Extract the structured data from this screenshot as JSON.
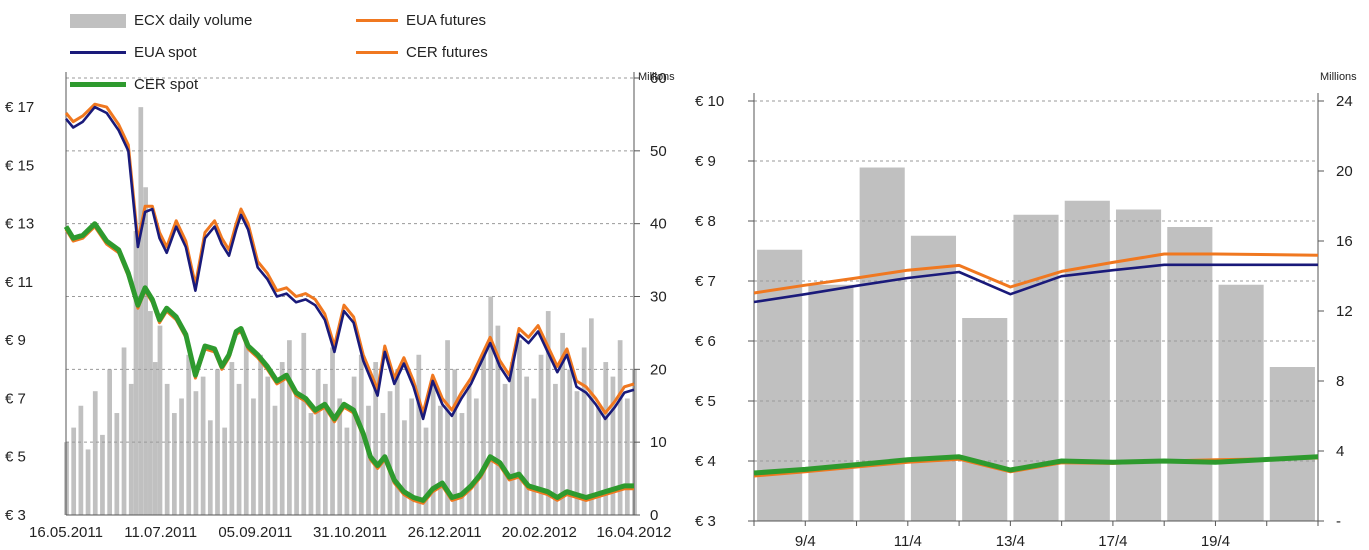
{
  "colors": {
    "volume": "#c0c0c0",
    "eua_spot": "#1a1a7a",
    "eua_futures": "#f07820",
    "cer_spot": "#2e9a2e",
    "cer_futures": "#f07820",
    "grid": "#9a9a9a"
  },
  "legend": {
    "volume_label": "ECX daily volume",
    "eua_futures_label": "EUA futures",
    "eua_spot_label": "EUA spot",
    "cer_futures_label": "CER futures",
    "cer_spot_label": "CER spot"
  },
  "chart_data": [
    {
      "type": "line",
      "title": "",
      "x_tick_labels": [
        "16.05.2011",
        "11.07.2011",
        "05.09.2011",
        "31.10.2011",
        "26.12.2011",
        "20.02.2012",
        "16.04.2012"
      ],
      "y_left_tick_labels": [
        "€ 3",
        "€ 5",
        "€ 7",
        "€ 9",
        "€ 11",
        "€ 13",
        "€ 15",
        "€ 17"
      ],
      "y_left_range": [
        3,
        18
      ],
      "y_right_label": "Millions",
      "y_right_tick_labels": [
        "0",
        "10",
        "20",
        "30",
        "40",
        "50",
        "60"
      ],
      "y_right_range": [
        0,
        60
      ],
      "x_range": [
        0,
        237
      ],
      "grid": true,
      "legend_placement": "top-left",
      "series": [
        {
          "name": "EUA spot",
          "axis": "left",
          "kind": "line",
          "x": [
            0,
            3,
            7,
            12,
            17,
            22,
            26,
            30,
            33,
            36,
            39,
            42,
            46,
            50,
            54,
            58,
            62,
            65,
            68,
            71,
            73,
            76,
            80,
            84,
            88,
            92,
            96,
            100,
            104,
            108,
            112,
            116,
            120,
            124,
            127,
            130,
            133,
            137,
            141,
            145,
            149,
            153,
            157,
            161,
            165,
            169,
            173,
            177,
            181,
            185,
            189,
            193,
            197,
            201,
            205,
            209,
            213,
            217,
            221,
            225,
            229,
            233,
            237
          ],
          "y": [
            16.6,
            16.3,
            16.5,
            17.0,
            16.8,
            16.2,
            15.5,
            12.2,
            13.4,
            13.5,
            12.5,
            12.0,
            12.9,
            12.2,
            10.7,
            12.5,
            12.9,
            12.3,
            11.9,
            12.8,
            13.3,
            12.8,
            11.5,
            11.1,
            10.5,
            10.6,
            10.3,
            10.4,
            10.2,
            9.7,
            8.6,
            10.0,
            9.6,
            8.3,
            7.7,
            7.1,
            8.6,
            7.5,
            8.2,
            7.4,
            6.3,
            7.6,
            6.8,
            6.4,
            7.0,
            7.5,
            8.2,
            8.9,
            8.1,
            7.6,
            9.2,
            8.9,
            9.3,
            8.6,
            7.9,
            8.5,
            7.4,
            7.2,
            6.8,
            6.3,
            6.7,
            7.2,
            7.3
          ]
        },
        {
          "name": "EUA futures",
          "axis": "left",
          "kind": "line",
          "x": [
            0,
            3,
            7,
            12,
            17,
            22,
            26,
            30,
            33,
            36,
            39,
            42,
            46,
            50,
            54,
            58,
            62,
            65,
            68,
            71,
            73,
            76,
            80,
            84,
            88,
            92,
            96,
            100,
            104,
            108,
            112,
            116,
            120,
            124,
            127,
            130,
            133,
            137,
            141,
            145,
            149,
            153,
            157,
            161,
            165,
            169,
            173,
            177,
            181,
            185,
            189,
            193,
            197,
            201,
            205,
            209,
            213,
            217,
            221,
            225,
            229,
            233,
            237
          ],
          "y": [
            16.8,
            16.5,
            16.7,
            17.1,
            17.0,
            16.4,
            15.7,
            12.4,
            13.6,
            13.6,
            12.7,
            12.2,
            13.1,
            12.4,
            10.9,
            12.7,
            13.1,
            12.5,
            12.1,
            13.0,
            13.5,
            13.0,
            11.7,
            11.3,
            10.7,
            10.8,
            10.5,
            10.6,
            10.4,
            9.9,
            8.8,
            10.2,
            9.8,
            8.5,
            7.9,
            7.3,
            8.8,
            7.7,
            8.4,
            7.6,
            6.5,
            7.8,
            7.0,
            6.6,
            7.2,
            7.7,
            8.4,
            9.1,
            8.3,
            7.8,
            9.4,
            9.1,
            9.5,
            8.8,
            8.1,
            8.7,
            7.6,
            7.4,
            7.0,
            6.5,
            6.9,
            7.4,
            7.5
          ]
        },
        {
          "name": "CER spot",
          "axis": "left",
          "kind": "line",
          "x": [
            0,
            3,
            7,
            12,
            17,
            22,
            26,
            30,
            33,
            36,
            39,
            42,
            46,
            50,
            54,
            58,
            62,
            65,
            68,
            71,
            73,
            76,
            80,
            84,
            88,
            92,
            96,
            100,
            104,
            108,
            112,
            116,
            120,
            124,
            127,
            130,
            133,
            137,
            141,
            145,
            149,
            153,
            157,
            161,
            165,
            169,
            173,
            177,
            181,
            185,
            189,
            193,
            197,
            201,
            205,
            209,
            213,
            217,
            221,
            225,
            229,
            233,
            237
          ],
          "y": [
            12.9,
            12.5,
            12.6,
            13.0,
            12.4,
            12.1,
            11.3,
            10.2,
            10.8,
            10.4,
            9.7,
            10.1,
            9.8,
            9.2,
            7.8,
            8.8,
            8.7,
            8.1,
            8.5,
            9.3,
            9.4,
            8.8,
            8.5,
            8.1,
            7.6,
            7.8,
            7.2,
            7.0,
            6.6,
            6.8,
            6.3,
            6.8,
            6.6,
            5.8,
            5.0,
            4.7,
            5.0,
            4.2,
            3.8,
            3.6,
            3.5,
            3.9,
            4.1,
            3.6,
            3.7,
            4.0,
            4.4,
            5.0,
            4.8,
            4.3,
            4.4,
            4.0,
            3.9,
            3.8,
            3.6,
            3.8,
            3.7,
            3.6,
            3.7,
            3.8,
            3.9,
            4.0,
            4.0
          ]
        },
        {
          "name": "CER futures",
          "axis": "left",
          "kind": "line",
          "x": [
            0,
            3,
            7,
            12,
            17,
            22,
            26,
            30,
            33,
            36,
            39,
            42,
            46,
            50,
            54,
            58,
            62,
            65,
            68,
            71,
            73,
            76,
            80,
            84,
            88,
            92,
            96,
            100,
            104,
            108,
            112,
            116,
            120,
            124,
            127,
            130,
            133,
            137,
            141,
            145,
            149,
            153,
            157,
            161,
            165,
            169,
            173,
            177,
            181,
            185,
            189,
            193,
            197,
            201,
            205,
            209,
            213,
            217,
            221,
            225,
            229,
            233,
            237
          ],
          "y": [
            12.8,
            12.4,
            12.5,
            12.9,
            12.3,
            12.0,
            11.2,
            10.1,
            10.7,
            10.3,
            9.6,
            10.0,
            9.7,
            9.1,
            7.7,
            8.7,
            8.6,
            8.0,
            8.4,
            9.2,
            9.3,
            8.7,
            8.4,
            8.0,
            7.5,
            7.7,
            7.1,
            6.9,
            6.5,
            6.7,
            6.2,
            6.7,
            6.5,
            5.7,
            4.9,
            4.6,
            4.9,
            4.1,
            3.7,
            3.5,
            3.4,
            3.8,
            4.0,
            3.5,
            3.6,
            3.9,
            4.3,
            4.9,
            4.7,
            4.2,
            4.3,
            3.9,
            3.8,
            3.7,
            3.5,
            3.7,
            3.6,
            3.5,
            3.6,
            3.7,
            3.8,
            3.9,
            3.9
          ]
        }
      ],
      "volume": {
        "name": "ECX daily volume",
        "axis": "right",
        "kind": "bar",
        "x": [
          0,
          3,
          6,
          9,
          12,
          15,
          18,
          21,
          24,
          27,
          29,
          31,
          33,
          35,
          37,
          39,
          42,
          45,
          48,
          51,
          54,
          57,
          60,
          63,
          66,
          69,
          72,
          75,
          78,
          81,
          84,
          87,
          90,
          93,
          96,
          99,
          102,
          105,
          108,
          111,
          114,
          117,
          120,
          123,
          126,
          129,
          132,
          135,
          138,
          141,
          144,
          147,
          150,
          153,
          156,
          159,
          162,
          165,
          168,
          171,
          174,
          177,
          180,
          183,
          186,
          189,
          192,
          195,
          198,
          201,
          204,
          207,
          210,
          213,
          216,
          219,
          222,
          225,
          228,
          231,
          234,
          237
        ],
        "y": [
          10,
          12,
          15,
          9,
          17,
          11,
          20,
          14,
          23,
          18,
          39,
          56,
          45,
          28,
          21,
          26,
          18,
          14,
          16,
          22,
          17,
          19,
          13,
          20,
          12,
          21,
          18,
          24,
          16,
          22,
          19,
          15,
          21,
          24,
          17,
          25,
          14,
          20,
          18,
          23,
          16,
          12,
          19,
          22,
          15,
          21,
          14,
          17,
          20,
          13,
          16,
          22,
          12,
          18,
          15,
          24,
          20,
          14,
          18,
          16,
          22,
          30,
          26,
          18,
          21,
          24,
          19,
          16,
          22,
          28,
          18,
          25,
          20,
          17,
          23,
          27,
          15,
          21,
          19,
          24,
          16,
          20
        ]
      }
    },
    {
      "type": "line",
      "title": "",
      "x_tick_labels": [
        "9/4",
        "11/4",
        "13/4",
        "17/4",
        "19/4"
      ],
      "x_tick_index": [
        0,
        2,
        4,
        6,
        8
      ],
      "y_left_tick_labels": [
        "€ 3",
        "€ 4",
        "€ 5",
        "€ 6",
        "€ 7",
        "€ 8",
        "€ 9",
        "€ 10"
      ],
      "y_left_range": [
        3,
        10
      ],
      "y_right_label": "Millions",
      "y_right_tick_labels": [
        "-",
        "4",
        "8",
        "12",
        "16",
        "20",
        "24"
      ],
      "y_right_range": [
        0,
        24
      ],
      "x_range": [
        0,
        10
      ],
      "grid": true,
      "series": [
        {
          "name": "EUA spot",
          "axis": "left",
          "kind": "line",
          "x": [
            0,
            1,
            2,
            3,
            4,
            5,
            6,
            7,
            8,
            9,
            10
          ],
          "y": [
            6.65,
            6.78,
            6.92,
            7.05,
            7.15,
            6.78,
            7.08,
            7.18,
            7.27,
            7.27,
            7.27
          ]
        },
        {
          "name": "EUA futures",
          "axis": "left",
          "kind": "line",
          "x": [
            0,
            1,
            2,
            3,
            4,
            5,
            6,
            7,
            8,
            9,
            10
          ],
          "y": [
            6.8,
            6.93,
            7.05,
            7.18,
            7.26,
            6.9,
            7.16,
            7.31,
            7.45,
            7.45,
            7.43
          ]
        },
        {
          "name": "CER spot",
          "axis": "left",
          "kind": "line",
          "x": [
            0,
            1,
            2,
            3,
            4,
            5,
            6,
            7,
            8,
            9,
            10
          ],
          "y": [
            3.8,
            3.86,
            3.94,
            4.02,
            4.07,
            3.85,
            4.0,
            3.98,
            4.0,
            3.98,
            4.07
          ]
        },
        {
          "name": "CER futures",
          "axis": "left",
          "kind": "line",
          "x": [
            0,
            1,
            2,
            3,
            4,
            5,
            6,
            7,
            8,
            9,
            10
          ],
          "y": [
            3.75,
            3.82,
            3.9,
            3.98,
            4.03,
            3.82,
            3.97,
            3.96,
            4.0,
            4.02,
            4.05
          ]
        }
      ],
      "volume": {
        "name": "ECX daily volume",
        "axis": "right",
        "kind": "bar",
        "categories": [
          0,
          1,
          2,
          3,
          4,
          5,
          6,
          7,
          8,
          9,
          10
        ],
        "y": [
          15.5,
          13.5,
          20.2,
          16.3,
          11.6,
          17.5,
          18.3,
          17.8,
          16.8,
          13.5,
          8.8
        ]
      }
    }
  ]
}
